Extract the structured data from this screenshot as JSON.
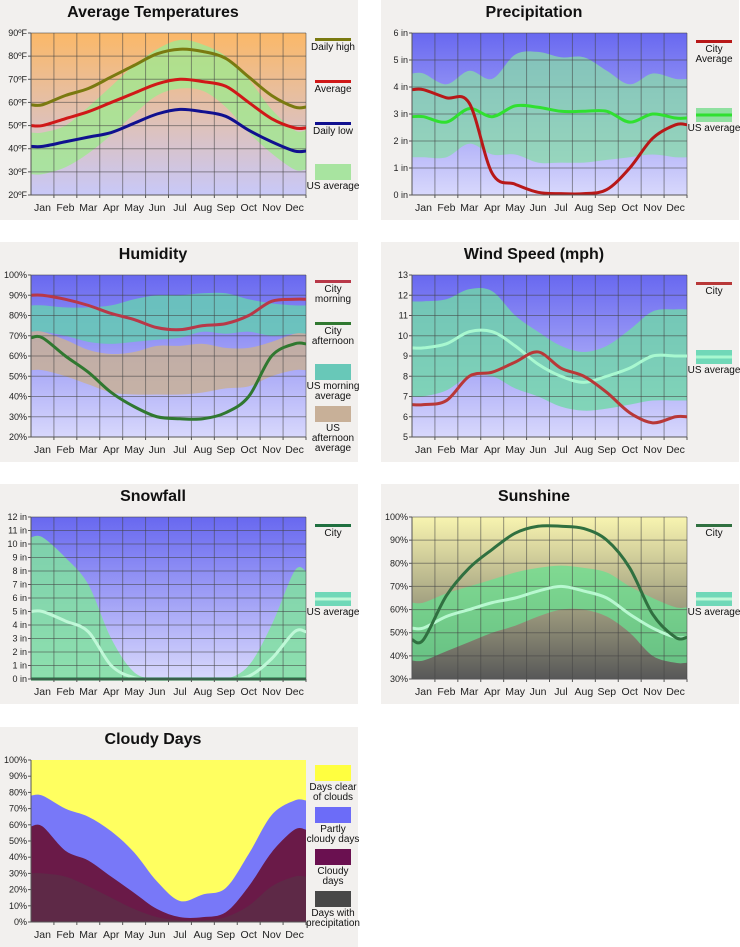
{
  "months": [
    "Jan",
    "Feb",
    "Mar",
    "Apr",
    "May",
    "Jun",
    "Jul",
    "Aug",
    "Sep",
    "Oct",
    "Nov",
    "Dec"
  ],
  "chart_data": [
    {
      "type": "line",
      "title": "Average Temperatures",
      "yticks": [
        "20ºF",
        "30ºF",
        "40ºF",
        "50ºF",
        "60ºF",
        "70ºF",
        "80ºF",
        "90ºF"
      ],
      "ylim": [
        20,
        90
      ],
      "grid": true,
      "bg": [
        "#fbb868",
        "#c8c8f8"
      ],
      "bands": [
        {
          "name": "US average",
          "color": "#a0e890",
          "opacity": 0.8,
          "lower": [
            29,
            32,
            38,
            46,
            55,
            63,
            66,
            65,
            58,
            47,
            38,
            31
          ],
          "upper": [
            47,
            50,
            58,
            67,
            76,
            83,
            87,
            85,
            80,
            70,
            57,
            48
          ]
        }
      ],
      "series": [
        {
          "name": "Daily high",
          "color": "#7a7a10",
          "values": [
            59,
            63,
            66,
            71,
            76,
            81,
            83,
            82,
            79,
            71,
            63,
            58
          ]
        },
        {
          "name": "Average",
          "color": "#d01818",
          "values": [
            50,
            53,
            56,
            60,
            64,
            68,
            70,
            69,
            67,
            60,
            53,
            49
          ]
        },
        {
          "name": "Daily low",
          "color": "#10108f",
          "values": [
            41,
            43,
            45,
            47,
            51,
            55,
            57,
            56,
            54,
            48,
            43,
            39
          ]
        }
      ],
      "legend": [
        {
          "label": "Daily high",
          "kind": "line",
          "color": "#7a7a10"
        },
        {
          "label": "Average",
          "kind": "line",
          "color": "#d01818"
        },
        {
          "label": "Daily low",
          "kind": "line",
          "color": "#10108f"
        },
        {
          "label": "US average",
          "kind": "box",
          "color": "#a8e4a0"
        }
      ]
    },
    {
      "type": "line",
      "title": "Precipitation",
      "yticks": [
        "0 in",
        "1 in",
        "2 in",
        "3 in",
        "4 in",
        "5 in",
        "6 in"
      ],
      "ylim": [
        0,
        6
      ],
      "grid": true,
      "bg": [
        "#6868f0",
        "#d8d8fc"
      ],
      "bands": [
        {
          "name": "US average",
          "color": "#88dca8",
          "opacity": 0.75,
          "lower": [
            1.4,
            1.4,
            1.9,
            1.5,
            1.5,
            1.2,
            1.2,
            1.2,
            1.3,
            1.4,
            1.5,
            1.4
          ],
          "upper": [
            4.5,
            4.1,
            4.6,
            4.3,
            5.2,
            5.3,
            5.1,
            5.1,
            4.6,
            4.1,
            4.5,
            4.3
          ]
        }
      ],
      "series": [
        {
          "name": "US average",
          "color": "#30e030",
          "values": [
            2.9,
            2.7,
            3.2,
            2.9,
            3.3,
            3.25,
            3.1,
            3.1,
            3.1,
            2.7,
            3.0,
            2.85
          ]
        },
        {
          "name": "City Average",
          "color": "#b81818",
          "values": [
            3.9,
            3.6,
            3.4,
            0.8,
            0.4,
            0.1,
            0.05,
            0.05,
            0.2,
            1.0,
            2.1,
            2.6
          ]
        }
      ],
      "legend": [
        {
          "label": "City Average",
          "kind": "line",
          "color": "#b81818"
        },
        {
          "label": "US average",
          "kind": "boxline",
          "color": "#90e0a0",
          "line": "#30e030"
        }
      ]
    },
    {
      "type": "line",
      "title": "Humidity",
      "yticks": [
        "20%",
        "30%",
        "40%",
        "50%",
        "60%",
        "70%",
        "80%",
        "90%",
        "100%"
      ],
      "ylim": [
        20,
        100
      ],
      "grid": true,
      "bg": [
        "#6868f0",
        "#d8d8fc"
      ],
      "bands": [
        {
          "name": "US morning average",
          "color": "#68c8b8",
          "opacity": 0.9,
          "lower": [
            72,
            70,
            67,
            66,
            67,
            68,
            69,
            72,
            71,
            72,
            70,
            71
          ],
          "upper": [
            85,
            84,
            84,
            85,
            88,
            90,
            90,
            91,
            91,
            88,
            86,
            85
          ]
        },
        {
          "name": "US afternoon average",
          "color": "#c8b098",
          "opacity": 0.85,
          "lower": [
            53,
            50,
            46,
            42,
            41,
            41,
            41,
            42,
            44,
            45,
            50,
            53
          ],
          "upper": [
            72,
            68,
            63,
            61,
            62,
            65,
            65,
            66,
            64,
            64,
            67,
            71
          ]
        }
      ],
      "series": [
        {
          "name": "City morning",
          "color": "#b83848",
          "values": [
            90,
            88,
            85,
            81,
            78,
            74,
            73,
            75,
            76,
            80,
            87,
            88
          ]
        },
        {
          "name": "City afternoon",
          "color": "#307830",
          "values": [
            69,
            60,
            52,
            42,
            35,
            30,
            29,
            29,
            32,
            40,
            60,
            66
          ]
        }
      ],
      "legend": [
        {
          "label": "City morning",
          "kind": "line",
          "color": "#b83848"
        },
        {
          "label": "City afternoon",
          "kind": "line",
          "color": "#307830"
        },
        {
          "label": "US morning average",
          "kind": "box",
          "color": "#68c8b8"
        },
        {
          "label": "US afternoon average",
          "kind": "box",
          "color": "#c8b098"
        }
      ]
    },
    {
      "type": "line",
      "title": "Wind Speed (mph)",
      "yticks": [
        "5",
        "6",
        "7",
        "8",
        "9",
        "10",
        "11",
        "12",
        "13"
      ],
      "ylim": [
        5,
        13
      ],
      "grid": true,
      "bg": [
        "#6868f0",
        "#d8d8fc"
      ],
      "bands": [
        {
          "name": "US average",
          "color": "#70d8a8",
          "opacity": 0.8,
          "lower": [
            7.0,
            7.3,
            8.0,
            8.0,
            7.4,
            7.0,
            6.5,
            6.3,
            6.4,
            6.6,
            6.8,
            6.8
          ],
          "upper": [
            11.7,
            11.8,
            12.3,
            12.2,
            11.0,
            10.2,
            9.5,
            9.2,
            9.5,
            10.3,
            11.2,
            11.3
          ]
        }
      ],
      "series": [
        {
          "name": "US average",
          "color": "#a8f8d0",
          "values": [
            9.4,
            9.6,
            10.2,
            10.2,
            9.5,
            8.6,
            8.0,
            7.7,
            8.0,
            8.4,
            9.0,
            9.0
          ]
        },
        {
          "name": "City",
          "color": "#b83838",
          "values": [
            6.6,
            6.8,
            8.0,
            8.2,
            8.7,
            9.2,
            8.4,
            8.0,
            7.2,
            6.2,
            5.7,
            6.0
          ]
        }
      ],
      "legend": [
        {
          "label": "City",
          "kind": "line",
          "color": "#b83838"
        },
        {
          "label": "US average",
          "kind": "boxline",
          "color": "#70d8b8",
          "line": "#a8f8d0"
        }
      ]
    },
    {
      "type": "line",
      "title": "Snowfall",
      "yticks": [
        "0 in",
        "1 in",
        "2 in",
        "3 in",
        "4 in",
        "5 in",
        "6 in",
        "7 in",
        "8 in",
        "9 in",
        "10 in",
        "11 in",
        "12 in"
      ],
      "ylim": [
        0,
        12
      ],
      "grid": true,
      "bg": [
        "#6868f0",
        "#d8d8fc"
      ],
      "bands": [
        {
          "name": "US average",
          "color": "#80e0a0",
          "opacity": 0.85,
          "lower": [
            0,
            0,
            0,
            0,
            0,
            0,
            0,
            0,
            0,
            0,
            0,
            0
          ],
          "upper": [
            10.5,
            9,
            7,
            3,
            0.5,
            0,
            0,
            0,
            0,
            1,
            4,
            8
          ]
        }
      ],
      "series": [
        {
          "name": "US average",
          "color": "#c0f8d8",
          "values": [
            5.0,
            4.3,
            3.5,
            1.0,
            0.1,
            0,
            0,
            0,
            0,
            0.2,
            1.5,
            3.5
          ]
        },
        {
          "name": "City",
          "color": "#207040",
          "values": [
            0,
            0,
            0,
            0,
            0,
            0,
            0,
            0,
            0,
            0,
            0,
            0
          ]
        }
      ],
      "legend": [
        {
          "label": "City",
          "kind": "line",
          "color": "#207040"
        },
        {
          "label": "US average",
          "kind": "boxline",
          "color": "#70d8b8",
          "line": "#c0f8d8"
        }
      ]
    },
    {
      "type": "line",
      "title": "Sunshine",
      "yticks": [
        "30%",
        "40%",
        "50%",
        "60%",
        "70%",
        "80%",
        "90%",
        "100%"
      ],
      "ylim": [
        30,
        100
      ],
      "grid": true,
      "bg": [
        "#f8f4b0",
        "#585858"
      ],
      "bands": [
        {
          "name": "US average",
          "color": "#68e090",
          "opacity": 0.75,
          "lower": [
            38,
            42,
            46,
            50,
            53,
            57,
            60,
            60,
            57,
            50,
            40,
            37
          ],
          "upper": [
            63,
            67,
            70,
            73,
            76,
            78,
            79,
            78,
            76,
            70,
            65,
            61
          ]
        }
      ],
      "series": [
        {
          "name": "US average",
          "color": "#b8f8d0",
          "values": [
            52,
            57,
            60,
            63,
            65,
            68,
            70,
            68,
            65,
            58,
            52,
            48
          ]
        },
        {
          "name": "City",
          "color": "#307040",
          "values": [
            47,
            66,
            78,
            86,
            93,
            96,
            96,
            95,
            90,
            78,
            58,
            48
          ]
        }
      ],
      "legend": [
        {
          "label": "City",
          "kind": "line",
          "color": "#307040"
        },
        {
          "label": "US average",
          "kind": "boxline",
          "color": "#70d8b8",
          "line": "#c0f8d8"
        }
      ]
    },
    {
      "type": "area",
      "title": "Cloudy Days",
      "yticks": [
        "0%",
        "10%",
        "20%",
        "30%",
        "40%",
        "50%",
        "60%",
        "70%",
        "80%",
        "90%",
        "100%"
      ],
      "ylim": [
        0,
        100
      ],
      "grid": false,
      "bg": [
        "#ffff60",
        "#ffff60"
      ],
      "bands": [
        {
          "name": "Partly cloudy days",
          "color": "#7878f8",
          "opacity": 1,
          "lower": [
            0,
            0,
            0,
            0,
            0,
            0,
            0,
            0,
            0,
            0,
            0,
            0
          ],
          "upper": [
            78,
            70,
            65,
            56,
            43,
            25,
            13,
            17,
            21,
            42,
            66,
            75
          ]
        },
        {
          "name": "Cloudy days",
          "color": "#6a1a48",
          "opacity": 1,
          "lower": [
            0,
            0,
            0,
            0,
            0,
            0,
            0,
            0,
            0,
            0,
            0,
            0
          ],
          "upper": [
            59,
            44,
            38,
            28,
            18,
            8,
            3,
            3,
            6,
            22,
            43,
            57
          ]
        },
        {
          "name": "Days with precipitation",
          "color": "#484848",
          "opacity": 0.35,
          "lower": [
            0,
            0,
            0,
            0,
            0,
            0,
            0,
            0,
            0,
            0,
            0,
            0
          ],
          "upper": [
            30,
            28,
            22,
            15,
            8,
            3,
            1,
            1,
            3,
            10,
            22,
            28
          ]
        }
      ],
      "series": [],
      "legend": [
        {
          "label": "Days clear of clouds",
          "kind": "box",
          "color": "#ffff40"
        },
        {
          "label": "Partly cloudy days",
          "kind": "box",
          "color": "#6c6cf8"
        },
        {
          "label": "Cloudy days",
          "kind": "box",
          "color": "#6a1050"
        },
        {
          "label": "Days with precipitation",
          "kind": "box",
          "color": "#484848"
        }
      ]
    }
  ]
}
